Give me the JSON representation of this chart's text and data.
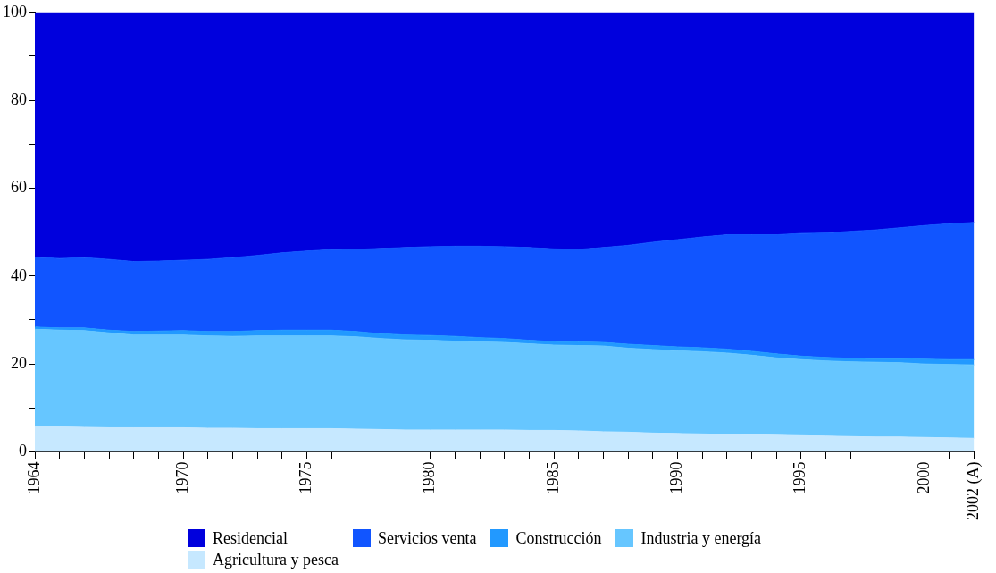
{
  "chart_data": {
    "type": "area",
    "stacked": true,
    "marker": "none",
    "legend": "bottom",
    "categories": [
      "1964",
      null,
      null,
      null,
      null,
      null,
      "1970",
      null,
      null,
      null,
      null,
      "1975",
      null,
      null,
      null,
      null,
      "1980",
      null,
      null,
      null,
      null,
      "1985",
      null,
      null,
      null,
      null,
      "1990",
      null,
      null,
      null,
      null,
      "1995",
      null,
      null,
      null,
      null,
      "2000",
      null,
      "2002 (A)"
    ],
    "ylim": [
      0,
      100
    ],
    "yticks": [
      0,
      {
        "value": 10,
        "label": null
      },
      20,
      {
        "value": 30,
        "label": null
      },
      40,
      {
        "value": 50,
        "label": null
      },
      60,
      {
        "value": 70,
        "label": null
      },
      80,
      {
        "value": 90,
        "label": null
      },
      100
    ],
    "series": [
      {
        "name": "Agricultura y pesca",
        "color": "#c6e8ff",
        "values": [
          5.7,
          5.7,
          5.6,
          5.5,
          5.5,
          5.5,
          5.5,
          5.4,
          5.4,
          5.3,
          5.3,
          5.3,
          5.3,
          5.2,
          5.1,
          5.0,
          5.0,
          5.0,
          5.0,
          5.0,
          4.9,
          4.9,
          4.8,
          4.6,
          4.5,
          4.3,
          4.2,
          4.1,
          4.0,
          3.9,
          3.8,
          3.7,
          3.6,
          3.5,
          3.4,
          3.4,
          3.3,
          3.2,
          3.1
        ]
      },
      {
        "name": "Industria y energía",
        "color": "#66c6ff",
        "values": [
          22.2,
          22.0,
          22.0,
          21.6,
          21.1,
          21.1,
          21.1,
          21.0,
          20.9,
          21.1,
          21.1,
          21.1,
          21.1,
          21.0,
          20.7,
          20.5,
          20.4,
          20.2,
          20.0,
          19.9,
          19.7,
          19.4,
          19.4,
          19.5,
          19.1,
          19.0,
          18.8,
          18.7,
          18.5,
          18.1,
          17.6,
          17.3,
          17.1,
          17.0,
          17.0,
          16.9,
          16.7,
          16.7,
          16.7
        ]
      },
      {
        "name": "Construcción",
        "color": "#2299ff",
        "values": [
          0.5,
          0.5,
          0.6,
          0.6,
          0.8,
          0.9,
          1.0,
          1.0,
          1.1,
          1.2,
          1.3,
          1.3,
          1.3,
          1.2,
          1.1,
          1.1,
          1.1,
          1.1,
          1.0,
          0.9,
          0.8,
          0.8,
          0.8,
          0.8,
          0.9,
          0.9,
          0.9,
          0.9,
          0.9,
          0.9,
          0.9,
          0.8,
          0.8,
          0.8,
          0.8,
          0.9,
          1.1,
          1.1,
          1.2
        ]
      },
      {
        "name": "Servicios venta",
        "color": "#1155ff",
        "values": [
          15.9,
          15.8,
          16.0,
          16.1,
          15.9,
          15.9,
          16.0,
          16.4,
          16.8,
          17.1,
          17.6,
          18.0,
          18.3,
          18.7,
          19.4,
          19.9,
          20.2,
          20.5,
          20.8,
          20.9,
          21.1,
          21.1,
          21.1,
          21.6,
          22.5,
          23.5,
          24.4,
          25.2,
          26.0,
          26.5,
          27.1,
          27.9,
          28.3,
          28.9,
          29.3,
          29.8,
          30.4,
          30.9,
          31.2
        ]
      },
      {
        "name": "Residencial",
        "color": "#0000dd",
        "values": [
          55.7,
          56.0,
          55.8,
          56.2,
          56.7,
          56.6,
          56.4,
          56.2,
          55.8,
          55.3,
          54.7,
          54.3,
          54.0,
          53.9,
          53.7,
          53.5,
          53.3,
          53.2,
          53.2,
          53.3,
          53.5,
          53.8,
          53.9,
          53.5,
          53.0,
          52.3,
          51.7,
          51.1,
          50.6,
          50.6,
          50.6,
          50.3,
          50.2,
          49.8,
          49.5,
          49.0,
          48.5,
          48.1,
          47.8
        ]
      }
    ]
  }
}
